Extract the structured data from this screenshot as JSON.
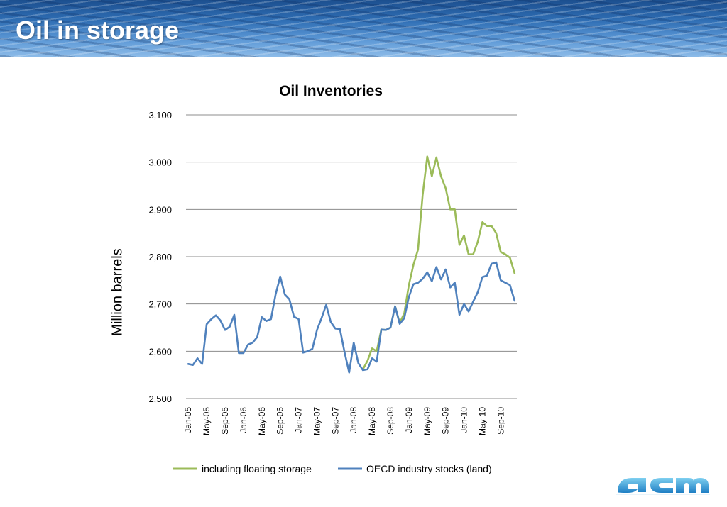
{
  "slide": {
    "title": "Oil in storage"
  },
  "chart_data": {
    "type": "line",
    "title": "Oil Inventories",
    "xlabel": "",
    "ylabel": "Million barrels",
    "ylim": [
      2500,
      3100
    ],
    "yticks": [
      2500,
      2600,
      2700,
      2800,
      2900,
      3000,
      3100
    ],
    "ytick_labels": [
      "2,500",
      "2,600",
      "2,700",
      "2,800",
      "2,900",
      "3,000",
      "3,100"
    ],
    "x": [
      "Jan-05",
      "Feb-05",
      "Mar-05",
      "Apr-05",
      "May-05",
      "Jun-05",
      "Jul-05",
      "Aug-05",
      "Sep-05",
      "Oct-05",
      "Nov-05",
      "Dec-05",
      "Jan-06",
      "Feb-06",
      "Mar-06",
      "Apr-06",
      "May-06",
      "Jun-06",
      "Jul-06",
      "Aug-06",
      "Sep-06",
      "Oct-06",
      "Nov-06",
      "Dec-06",
      "Jan-07",
      "Feb-07",
      "Mar-07",
      "Apr-07",
      "May-07",
      "Jun-07",
      "Jul-07",
      "Aug-07",
      "Sep-07",
      "Oct-07",
      "Nov-07",
      "Dec-07",
      "Jan-08",
      "Feb-08",
      "Mar-08",
      "Apr-08",
      "May-08",
      "Jun-08",
      "Jul-08",
      "Aug-08",
      "Sep-08",
      "Oct-08",
      "Nov-08",
      "Dec-08",
      "Jan-09",
      "Feb-09",
      "Mar-09",
      "Apr-09",
      "May-09",
      "Jun-09",
      "Jul-09",
      "Aug-09",
      "Sep-09",
      "Oct-09",
      "Nov-09",
      "Dec-09",
      "Jan-10",
      "Feb-10",
      "Mar-10",
      "Apr-10",
      "May-10",
      "Jun-10",
      "Jul-10",
      "Aug-10",
      "Sep-10",
      "Oct-10",
      "Nov-10",
      "Dec-10"
    ],
    "xtick_labels": [
      "Jan-05",
      "May-05",
      "Sep-05",
      "Jan-06",
      "May-06",
      "Sep-06",
      "Jan-07",
      "May-07",
      "Sep-07",
      "Jan-08",
      "May-08",
      "Sep-08",
      "Jan-09",
      "May-09",
      "Sep-09",
      "Jan-10",
      "May-10",
      "Sep-10"
    ],
    "series": [
      {
        "name": "including floating storage",
        "color": "#9bbb59",
        "values": [
          null,
          null,
          null,
          null,
          null,
          null,
          null,
          null,
          null,
          null,
          null,
          null,
          null,
          null,
          null,
          null,
          null,
          null,
          null,
          null,
          null,
          null,
          null,
          null,
          null,
          null,
          null,
          null,
          null,
          null,
          null,
          null,
          null,
          null,
          null,
          null,
          null,
          null,
          2562,
          2580,
          2606,
          2600,
          2646,
          2645,
          2650,
          2695,
          2660,
          2680,
          2740,
          2783,
          2815,
          2930,
          3012,
          2970,
          3010,
          2970,
          2945,
          2900,
          2900,
          2825,
          2845,
          2805,
          2805,
          2832,
          2873,
          2865,
          2865,
          2850,
          2810,
          2805,
          2798,
          2765
        ]
      },
      {
        "name": "OECD industry stocks (land)",
        "color": "#4f81bd",
        "values": [
          2573,
          2571,
          2585,
          2573,
          2657,
          2668,
          2676,
          2665,
          2645,
          2652,
          2677,
          2596,
          2596,
          2614,
          2618,
          2630,
          2672,
          2664,
          2668,
          2720,
          2758,
          2720,
          2710,
          2673,
          2668,
          2597,
          2600,
          2605,
          2645,
          2670,
          2698,
          2662,
          2648,
          2647,
          2598,
          2555,
          2618,
          2575,
          2560,
          2562,
          2585,
          2578,
          2646,
          2645,
          2650,
          2695,
          2658,
          2670,
          2715,
          2742,
          2745,
          2753,
          2767,
          2748,
          2778,
          2752,
          2773,
          2735,
          2745,
          2677,
          2700,
          2684,
          2705,
          2725,
          2757,
          2760,
          2785,
          2788,
          2750,
          2745,
          2740,
          2707
        ]
      }
    ],
    "legend": "bottom",
    "grid": "horizontal"
  }
}
